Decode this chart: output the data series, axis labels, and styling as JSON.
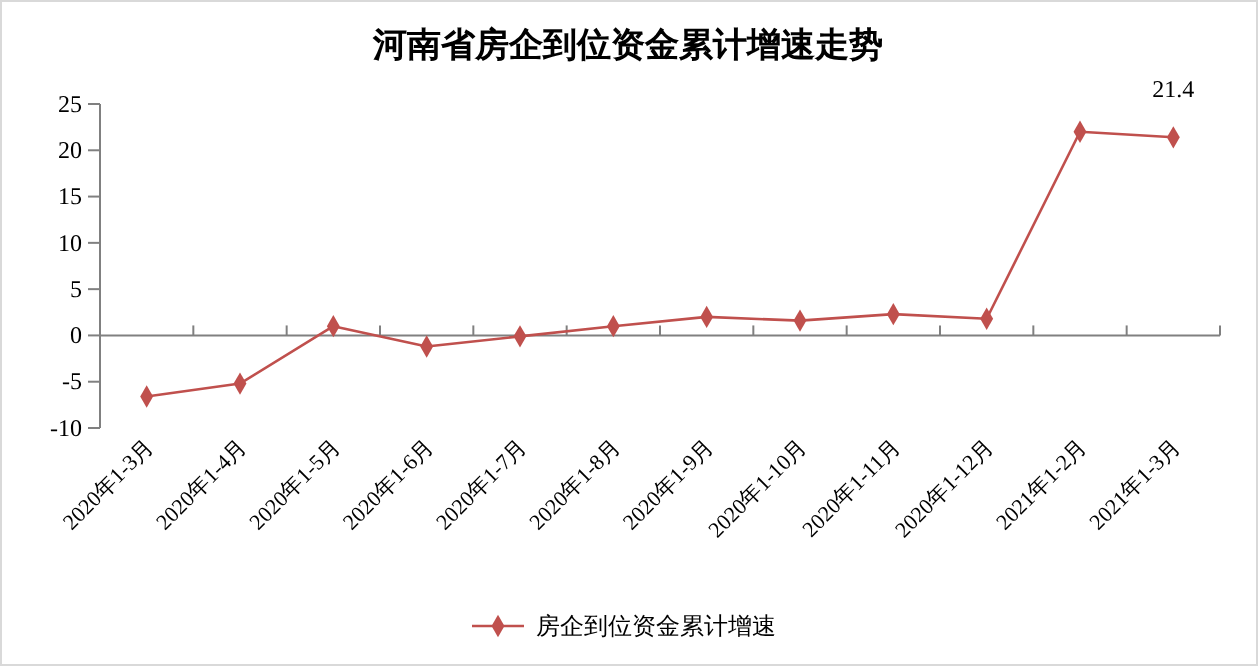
{
  "chart_data": {
    "type": "line",
    "title": "河南省房企到位资金累计增速走势",
    "categories": [
      "2020年1-3月",
      "2020年1-4月",
      "2020年1-5月",
      "2020年1-6月",
      "2020年1-7月",
      "2020年1-8月",
      "2020年1-9月",
      "2020年1-10月",
      "2020年1-11月",
      "2020年1-12月",
      "2021年1-2月",
      "2021年1-3月"
    ],
    "series": [
      {
        "name": "房企到位资金累计增速",
        "color": "#c0504d",
        "values": [
          -6.6,
          -5.2,
          1.0,
          -1.2,
          -0.1,
          1.0,
          2.0,
          1.6,
          2.3,
          1.8,
          22.0,
          21.4
        ],
        "value_labels": [
          null,
          null,
          null,
          null,
          null,
          null,
          null,
          null,
          null,
          null,
          null,
          "21.4"
        ]
      }
    ],
    "ylim": [
      -10,
      25
    ],
    "yticks": [
      -10,
      -5,
      0,
      5,
      10,
      15,
      20,
      25
    ],
    "legend": "bottom",
    "marker": "diamond",
    "line_style": "solid"
  }
}
